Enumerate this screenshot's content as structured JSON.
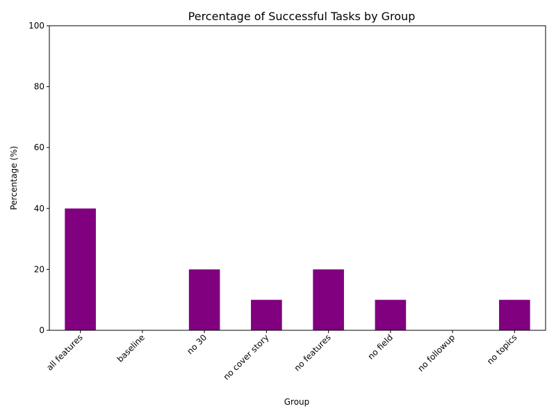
{
  "chart_data": {
    "type": "bar",
    "title": "Percentage of Successful Tasks by Group",
    "xlabel": "Group",
    "ylabel": "Percentage (%)",
    "ylim": [
      0,
      100
    ],
    "yticks": [
      0,
      20,
      40,
      60,
      80,
      100
    ],
    "categories": [
      "all features",
      "baseline",
      "no 30",
      "no cover story",
      "no features",
      "no field",
      "no followup",
      "no topics"
    ],
    "values": [
      40,
      0,
      20,
      10,
      20,
      10,
      0,
      10
    ],
    "bar_color": "#800080",
    "grid": false,
    "legend": "none",
    "xtick_rotation_deg": 45
  }
}
